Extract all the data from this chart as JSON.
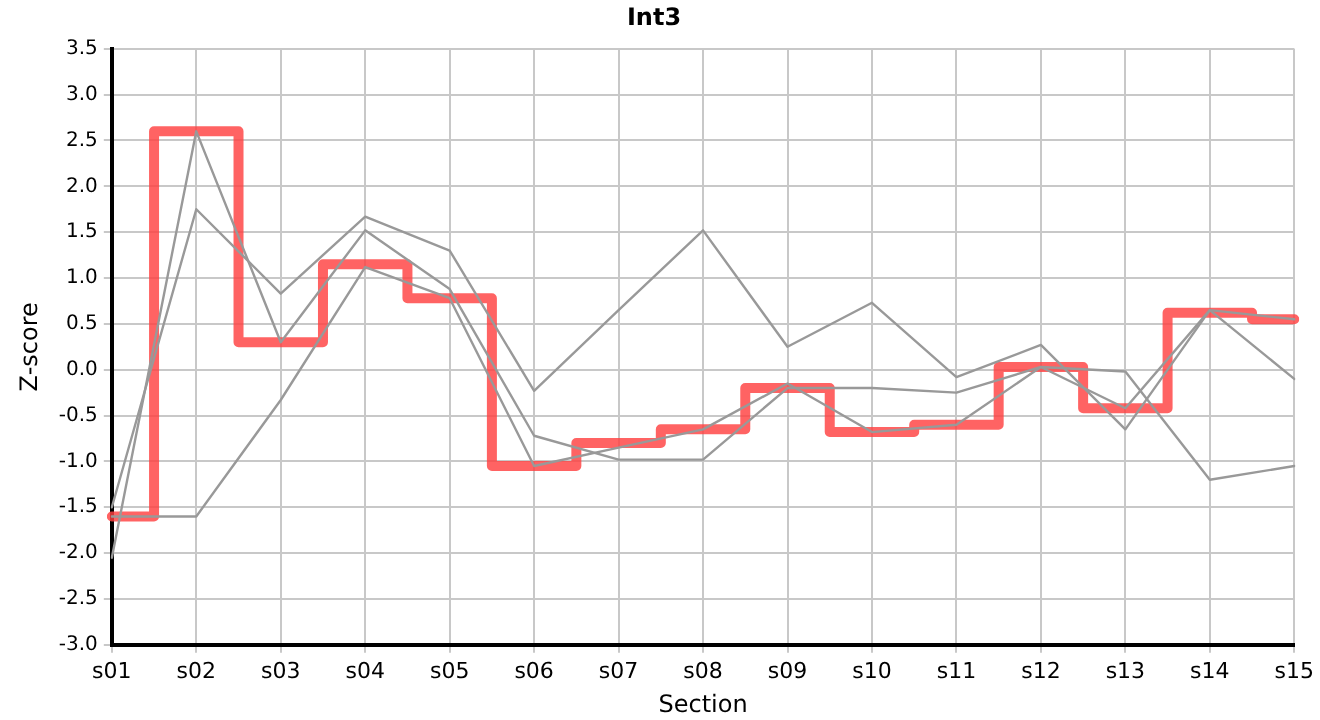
{
  "chart_data": {
    "type": "line",
    "title": "Int3",
    "xlabel": "Section",
    "ylabel": "Z-score",
    "categories": [
      "s01",
      "s02",
      "s03",
      "s04",
      "s05",
      "s06",
      "s07",
      "s08",
      "s09",
      "s10",
      "s11",
      "s12",
      "s13",
      "s14",
      "s15"
    ],
    "series": [
      {
        "color": "#999999",
        "values": [
          -1.5,
          1.75,
          0.83,
          1.67,
          1.3,
          -0.23,
          0.65,
          1.52,
          0.25,
          0.73,
          -0.08,
          0.27,
          -0.65,
          0.65,
          -0.1
        ]
      },
      {
        "color": "#999999",
        "values": [
          -2.05,
          2.6,
          0.3,
          1.52,
          0.88,
          -0.72,
          -0.98,
          -0.98,
          -0.2,
          -0.2,
          -0.25,
          0.03,
          -0.02,
          -1.2,
          -1.05
        ]
      },
      {
        "color": "#999999",
        "values": [
          -1.6,
          -1.6,
          -0.33,
          1.12,
          0.78,
          -1.05,
          -0.85,
          -0.65,
          -0.15,
          -0.68,
          -0.6,
          0.03,
          -0.42,
          0.65,
          0.55
        ]
      },
      {
        "type": "step",
        "color": "#ff4040",
        "values": [
          -1.6,
          2.6,
          0.3,
          1.15,
          0.78,
          -1.05,
          -0.8,
          -0.65,
          -0.2,
          -0.68,
          -0.6,
          0.03,
          -0.42,
          0.62,
          0.55
        ]
      }
    ],
    "ylim": [
      -3,
      3.5
    ],
    "yticks": [
      {
        "value": -3,
        "label": "-3.0"
      },
      -2.5,
      {
        "value": -2,
        "label": "-2.0"
      },
      -1.5,
      {
        "value": -1,
        "label": "-1.0"
      },
      -0.5,
      {
        "value": 0,
        "label": "0.0"
      },
      0.5,
      {
        "value": 1,
        "label": "1.0"
      },
      1.5,
      {
        "value": 2,
        "label": "2.0"
      },
      2.5,
      {
        "value": 3,
        "label": "3.0"
      },
      3.5
    ],
    "grid": true,
    "legend": false,
    "marker": "none",
    "line_style": "solid"
  }
}
